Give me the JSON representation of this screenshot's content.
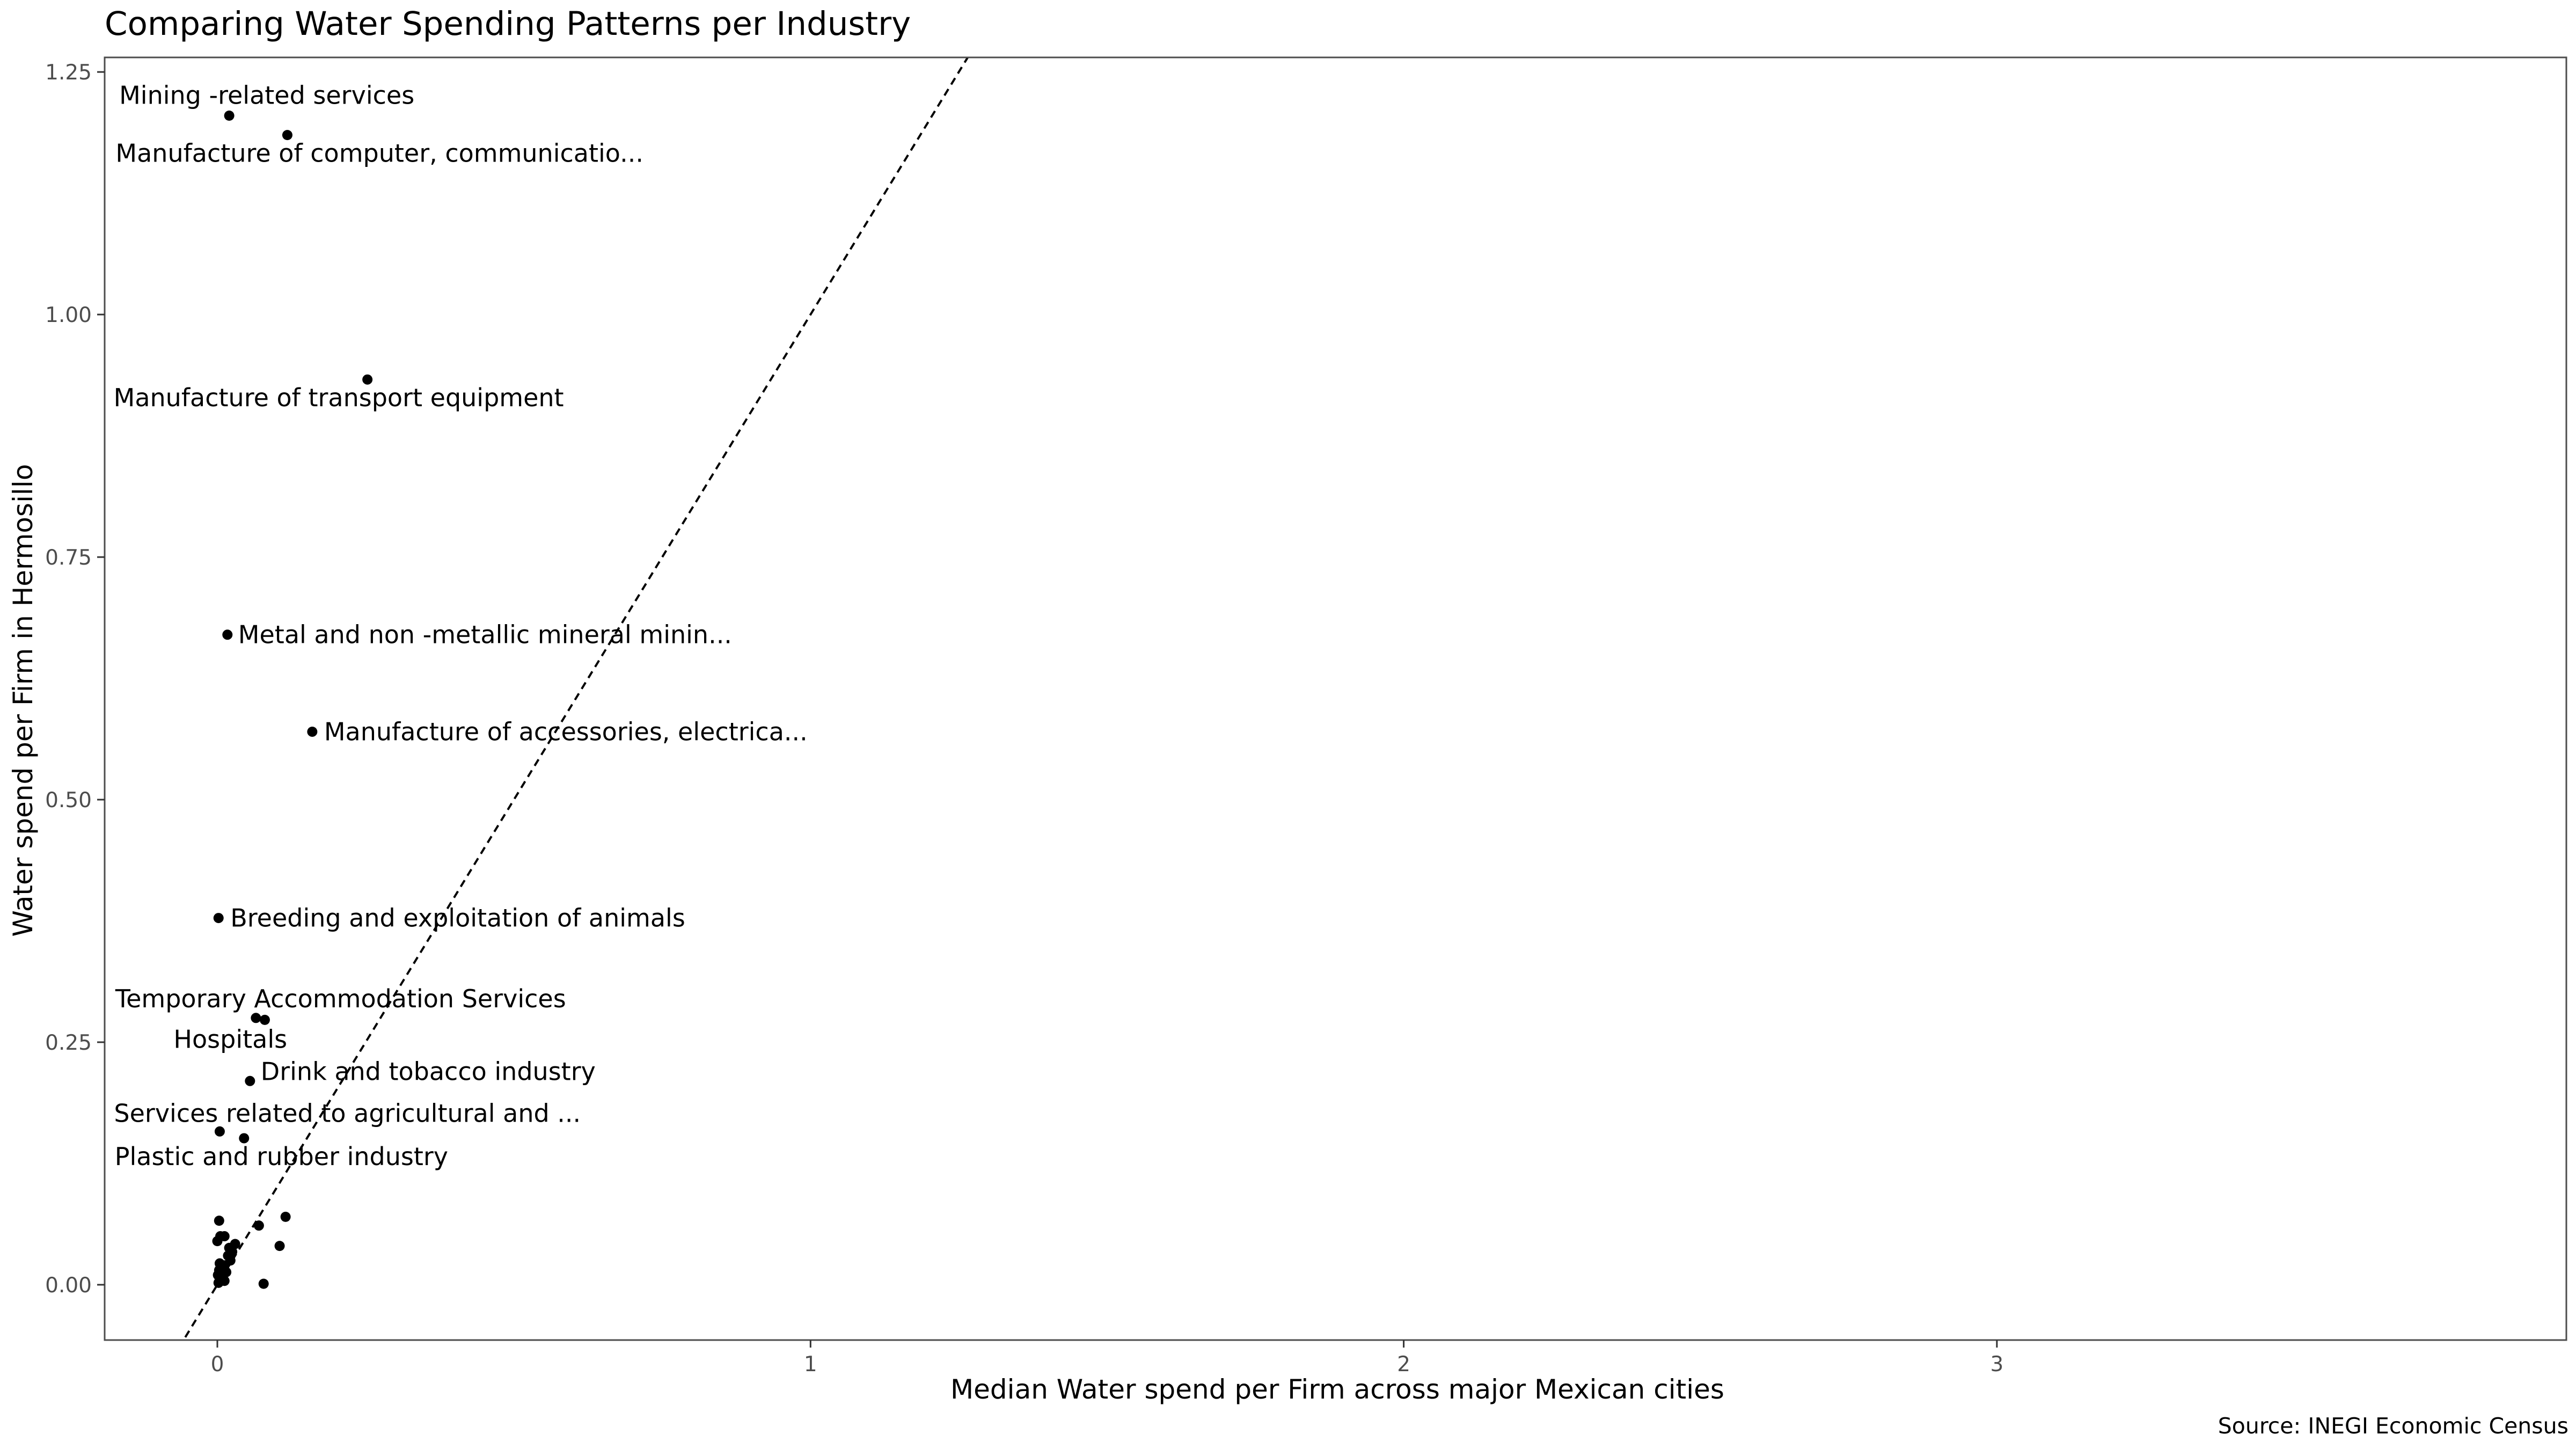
{
  "chart_data": {
    "type": "scatter",
    "title": "Comparing Water Spending Patterns per Industry",
    "xlabel": "Median Water spend per Firm across major Mexican cities",
    "ylabel": "Water spend per Firm in Hermosillo",
    "caption": "Source: INEGI Economic Census",
    "xlim": [
      -0.19,
      3.96
    ],
    "ylim": [
      -0.057,
      1.265
    ],
    "xticks": [
      0,
      1,
      2,
      3
    ],
    "yticks": [
      0.0,
      0.25,
      0.5,
      0.75,
      1.0,
      1.25
    ],
    "ytick_labels": [
      "0.00",
      "0.25",
      "0.50",
      "0.75",
      "1.00",
      "1.25"
    ],
    "grid": false,
    "legend": "none",
    "reference_line": {
      "style": "dashed",
      "slope": 1,
      "intercept": 0
    },
    "colors": {
      "points": "#000000",
      "panel_border": "#4d4d4d",
      "reference_line": "#000000"
    },
    "points": [
      {
        "x": 0.02,
        "y": 1.205,
        "label": "Mining -related services"
      },
      {
        "x": 0.118,
        "y": 1.185,
        "label": "Manufacture of computer, communicatio..."
      },
      {
        "x": 0.253,
        "y": 0.933,
        "label": "Manufacture of transport equipment"
      },
      {
        "x": 0.017,
        "y": 0.67,
        "label": "Metal and non -metallic mineral minin..."
      },
      {
        "x": 0.16,
        "y": 0.57,
        "label": "Manufacture of accessories, electrica..."
      },
      {
        "x": 0.002,
        "y": 0.378,
        "label": "Breeding and exploitation of animals"
      },
      {
        "x": 0.065,
        "y": 0.275,
        "label": "Temporary Accommodation Services"
      },
      {
        "x": 0.08,
        "y": 0.273,
        "label": "Hospitals"
      },
      {
        "x": 0.055,
        "y": 0.21,
        "label": "Drink and tobacco industry"
      },
      {
        "x": 0.004,
        "y": 0.158,
        "label": "Services related to agricultural and ..."
      },
      {
        "x": 0.045,
        "y": 0.151,
        "label": "Plastic and rubber industry"
      },
      {
        "x": 0.115,
        "y": 0.07
      },
      {
        "x": 0.003,
        "y": 0.066
      },
      {
        "x": 0.07,
        "y": 0.061
      },
      {
        "x": 0.005,
        "y": 0.05
      },
      {
        "x": 0.012,
        "y": 0.05
      },
      {
        "x": 0.0,
        "y": 0.045
      },
      {
        "x": 0.03,
        "y": 0.042
      },
      {
        "x": 0.105,
        "y": 0.04
      },
      {
        "x": 0.02,
        "y": 0.038
      },
      {
        "x": 0.025,
        "y": 0.034
      },
      {
        "x": 0.018,
        "y": 0.03
      },
      {
        "x": 0.022,
        "y": 0.025
      },
      {
        "x": 0.004,
        "y": 0.022
      },
      {
        "x": 0.012,
        "y": 0.02
      },
      {
        "x": 0.003,
        "y": 0.015
      },
      {
        "x": 0.015,
        "y": 0.013
      },
      {
        "x": 0.001,
        "y": 0.01
      },
      {
        "x": 0.008,
        "y": 0.008
      },
      {
        "x": 0.004,
        "y": 0.005
      },
      {
        "x": 0.012,
        "y": 0.004
      },
      {
        "x": 0.002,
        "y": 0.002
      },
      {
        "x": 0.078,
        "y": 0.001
      }
    ]
  }
}
